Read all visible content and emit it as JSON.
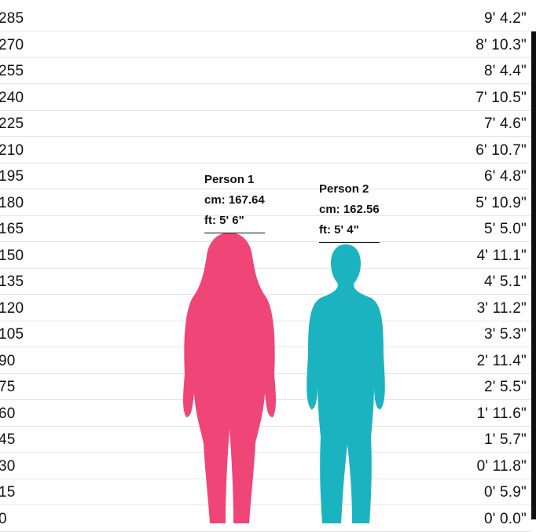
{
  "scale_rows": [
    {
      "cm": "285",
      "ft": "9' 4.2\""
    },
    {
      "cm": "270",
      "ft": "8' 10.3\""
    },
    {
      "cm": "255",
      "ft": "8' 4.4\""
    },
    {
      "cm": "240",
      "ft": "7' 10.5\""
    },
    {
      "cm": "225",
      "ft": "7' 4.6\""
    },
    {
      "cm": "210",
      "ft": "6' 10.7\""
    },
    {
      "cm": "195",
      "ft": "6' 4.8\""
    },
    {
      "cm": "180",
      "ft": "5' 10.9\""
    },
    {
      "cm": "165",
      "ft": "5' 5.0\""
    },
    {
      "cm": "150",
      "ft": "4' 11.1\""
    },
    {
      "cm": "135",
      "ft": "4' 5.1\""
    },
    {
      "cm": "120",
      "ft": "3' 11.2\""
    },
    {
      "cm": "105",
      "ft": "3' 5.3\""
    },
    {
      "cm": "90",
      "ft": "2' 11.4\""
    },
    {
      "cm": "75",
      "ft": "2' 5.5\""
    },
    {
      "cm": "60",
      "ft": "1' 11.6\""
    },
    {
      "cm": "45",
      "ft": "1' 5.7\""
    },
    {
      "cm": "30",
      "ft": "0' 11.8\""
    },
    {
      "cm": "15",
      "ft": "0' 5.9\""
    },
    {
      "cm": "0",
      "ft": "0' 0.0\""
    }
  ],
  "people": [
    {
      "name": "Person 1",
      "cm": "cm: 167.64",
      "ft": "ft: 5' 6\"",
      "height_cm": 167.64,
      "color": "#f04577"
    },
    {
      "name": "Person 2",
      "cm": "cm: 162.56",
      "ft": "ft: 5' 4\"",
      "height_cm": 162.56,
      "color": "#1bb3c0"
    }
  ]
}
